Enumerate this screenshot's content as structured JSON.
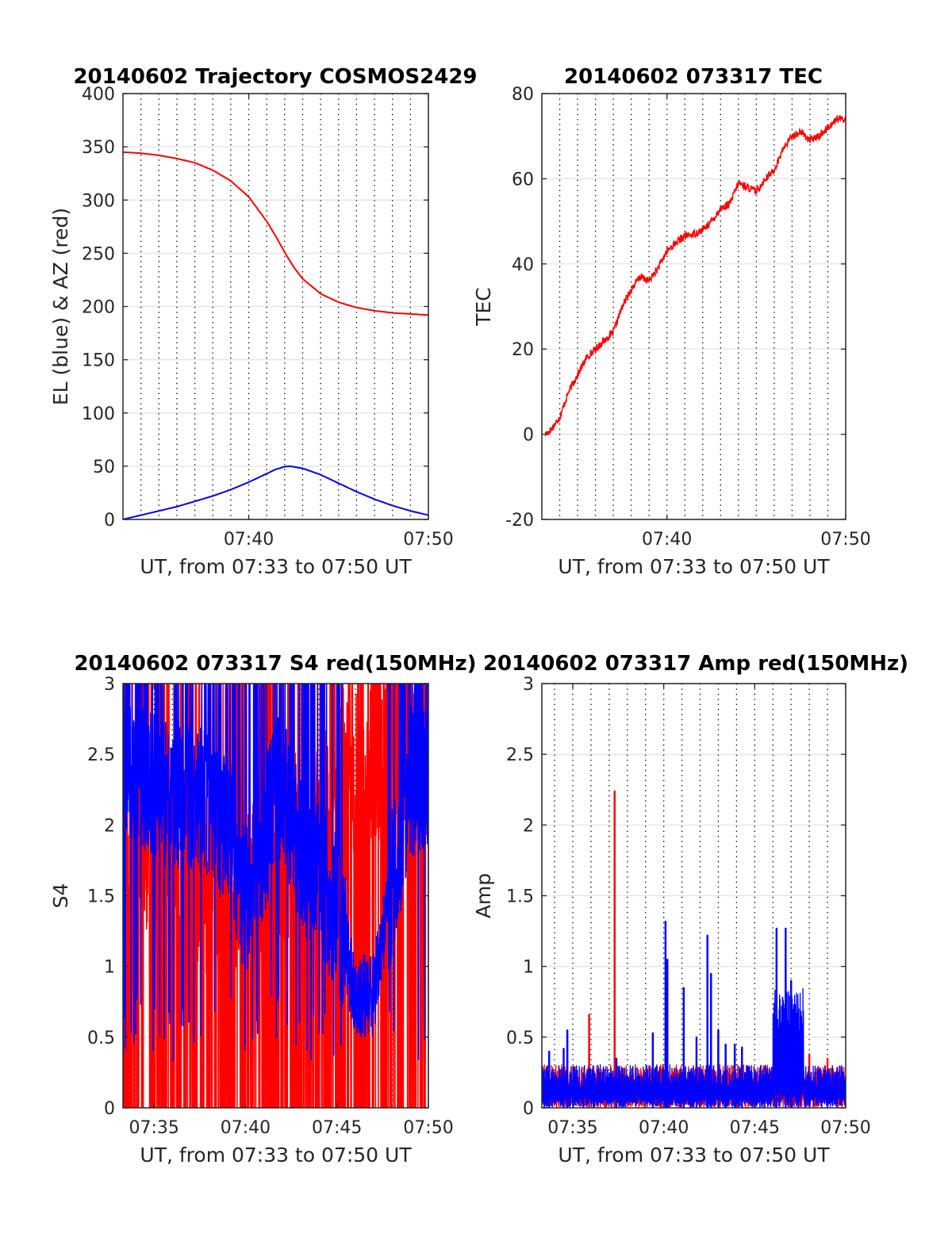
{
  "chart_data": [
    {
      "type": "line",
      "title": "20140602 Trajectory COSMOS2429",
      "xlabel": "UT, from 07:33 to 07:50 UT",
      "ylabel": "EL (blue) & AZ (red)",
      "x_unit": "minutes since 07:00 UT",
      "xlim": [
        33,
        50
      ],
      "ylim": [
        0,
        400
      ],
      "x_ticks": [
        40,
        50
      ],
      "x_tick_labels": [
        "07:40",
        "07:50"
      ],
      "y_ticks": [
        0,
        50,
        100,
        150,
        200,
        250,
        300,
        350,
        400
      ],
      "y_tick_labels": [
        "0",
        "50",
        "100",
        "150",
        "200",
        "250",
        "300",
        "350",
        "400"
      ],
      "grid": true,
      "vertical_dotted_minutes": [
        34,
        35,
        36,
        37,
        38,
        39,
        40,
        41,
        42,
        43,
        44,
        45,
        46,
        47,
        48,
        49
      ],
      "series": [
        {
          "color": "#ff0000",
          "x": [
            33,
            34,
            35,
            36,
            37,
            38,
            39,
            40,
            41,
            41.5,
            42,
            42.5,
            43,
            44,
            45,
            46,
            47,
            48,
            49,
            50
          ],
          "y": [
            345,
            344,
            342,
            339,
            335,
            328,
            318,
            303,
            280,
            266,
            251,
            237,
            226,
            212,
            204,
            199,
            196,
            194,
            193,
            192
          ]
        },
        {
          "color": "#0000ff",
          "x": [
            33,
            34,
            35,
            36,
            37,
            38,
            39,
            40,
            41,
            41.5,
            42,
            42.3,
            43,
            44,
            45,
            46,
            47,
            48,
            49,
            50
          ],
          "y": [
            0,
            4,
            8,
            12,
            17,
            22,
            28,
            35,
            43,
            47,
            49.5,
            50,
            48,
            42,
            34,
            26,
            19,
            13,
            8,
            4
          ]
        }
      ]
    },
    {
      "type": "line",
      "title": "20140602 073317 TEC",
      "xlabel": "UT, from 07:33 to 07:50 UT",
      "ylabel": "TEC",
      "xlim": [
        33,
        50
      ],
      "ylim": [
        -20,
        80
      ],
      "x_ticks": [
        40,
        50
      ],
      "x_tick_labels": [
        "07:40",
        "07:50"
      ],
      "y_ticks": [
        -20,
        0,
        20,
        40,
        60,
        80
      ],
      "y_tick_labels": [
        "-20",
        "0",
        "20",
        "40",
        "60",
        "80"
      ],
      "grid": true,
      "vertical_dotted_minutes": [
        34,
        35,
        36,
        37,
        38,
        39,
        40,
        41,
        42,
        43,
        44,
        45,
        46,
        47,
        48,
        49
      ],
      "series": [
        {
          "color": "#ff0000",
          "x": [
            33.2,
            33.5,
            34,
            34.5,
            35,
            35.5,
            36,
            36.5,
            37,
            37.5,
            38,
            38.5,
            39,
            39.5,
            40,
            40.5,
            41,
            41.5,
            42,
            42.5,
            43,
            43.5,
            44,
            44.5,
            45,
            45.5,
            46,
            46.5,
            47,
            47.5,
            48,
            48.5,
            49,
            49.5,
            50
          ],
          "y": [
            0,
            1,
            4,
            10,
            14,
            18,
            20,
            22,
            24,
            30,
            34,
            37,
            36,
            39,
            43,
            45,
            46.5,
            47,
            48,
            50,
            53,
            54,
            59,
            58,
            57,
            60,
            62,
            67,
            70,
            71,
            69,
            70,
            72,
            74,
            74
          ]
        }
      ]
    },
    {
      "type": "line",
      "title": "20140602 073317 S4 red(150MHz)",
      "xlabel": "UT, from 07:33 to 07:50 UT",
      "ylabel": "S4",
      "xlim": [
        33.3,
        50
      ],
      "ylim": [
        0,
        3
      ],
      "x_ticks": [
        35,
        40,
        45,
        50
      ],
      "x_tick_labels": [
        "07:35",
        "07:40",
        "07:45",
        "07:50"
      ],
      "y_ticks": [
        0,
        0.5,
        1,
        1.5,
        2,
        2.5,
        3
      ],
      "y_tick_labels": [
        "0",
        "0.5",
        "1",
        "1.5",
        "2",
        "2.5",
        "3"
      ],
      "grid": true,
      "vertical_dotted_minutes": [
        34,
        35,
        36,
        37,
        38,
        39,
        40,
        41,
        42,
        43,
        44,
        45,
        46,
        47,
        48,
        49
      ],
      "series": [
        {
          "color": "#ff0000",
          "noise": "red_s4",
          "x": [
            33.3,
            34,
            35,
            36,
            37,
            38,
            39,
            40,
            41,
            42,
            43,
            44,
            45,
            46,
            47,
            48,
            49,
            50
          ],
          "y": [
            2.2,
            2.0,
            1.9,
            1.8,
            1.7,
            1.6,
            1.5,
            1.6,
            1.7,
            1.8,
            1.9,
            2.0,
            2.2,
            2.4,
            2.5,
            2.6,
            2.6,
            2.6
          ]
        },
        {
          "color": "#0000ff",
          "noise": "blue_s4",
          "x": [
            33.3,
            34,
            35,
            36,
            37,
            38,
            39,
            40,
            41,
            42,
            43,
            44,
            45,
            46,
            47,
            48,
            49,
            50
          ],
          "y": [
            2.5,
            2.4,
            2.3,
            2.2,
            2.2,
            2.1,
            2.0,
            1.4,
            1.9,
            2.3,
            1.8,
            1.6,
            1.4,
            0.8,
            0.8,
            1.6,
            2.3,
            2.4
          ]
        }
      ]
    },
    {
      "type": "line",
      "title": "20140602 073317 Amp red(150MHz)",
      "xlabel": "UT, from 07:33 to 07:50 UT",
      "ylabel": "Amp",
      "xlim": [
        33.3,
        50
      ],
      "ylim": [
        0,
        3
      ],
      "x_ticks": [
        35,
        40,
        45,
        50
      ],
      "x_tick_labels": [
        "07:35",
        "07:40",
        "07:45",
        "07:50"
      ],
      "y_ticks": [
        0,
        0.5,
        1,
        1.5,
        2,
        2.5,
        3
      ],
      "y_tick_labels": [
        "0",
        "0.5",
        "1",
        "1.5",
        "2",
        "2.5",
        "3"
      ],
      "grid": true,
      "vertical_dotted_minutes": [
        34,
        35,
        36,
        37,
        38,
        39,
        40,
        41,
        42,
        43,
        44,
        45,
        46,
        47,
        48,
        49
      ],
      "series": [
        {
          "color": "#ff0000",
          "baseline": 0.22,
          "spikes": [
            [
              35.9,
              0.66
            ],
            [
              37.3,
              2.24
            ],
            [
              48,
              0.38
            ],
            [
              49,
              0.35
            ]
          ]
        },
        {
          "color": "#0000ff",
          "baseline": 0.22,
          "spikes": [
            [
              33.7,
              0.4
            ],
            [
              34.5,
              0.42
            ],
            [
              34.7,
              0.55
            ],
            [
              37.4,
              0.35
            ],
            [
              39.4,
              0.53
            ],
            [
              40.1,
              1.32
            ],
            [
              40.2,
              1.05
            ],
            [
              41.1,
              0.85
            ],
            [
              41.8,
              0.5
            ],
            [
              42.4,
              1.22
            ],
            [
              42.6,
              0.95
            ],
            [
              43,
              0.55
            ],
            [
              43.4,
              0.45
            ],
            [
              43.9,
              0.45
            ],
            [
              44.3,
              0.43
            ],
            [
              46.2,
              1.27
            ],
            [
              46.7,
              1.27
            ],
            [
              47,
              0.9
            ],
            [
              47.4,
              0.7
            ]
          ]
        }
      ]
    }
  ]
}
